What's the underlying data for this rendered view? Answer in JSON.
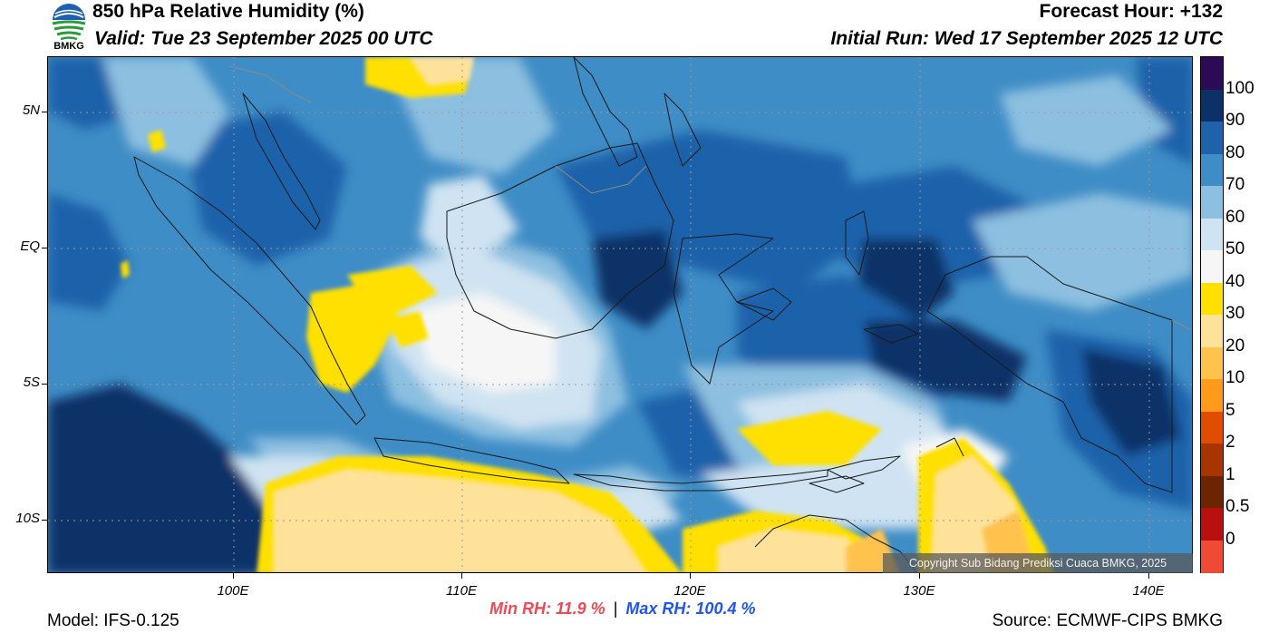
{
  "header": {
    "title": "850 hPa Relative Humidity (%)",
    "valid": "Valid: Tue 23 September 2025 00 UTC",
    "forecast_hour": "Forecast Hour: +132",
    "initial_run": "Initial Run: Wed 17 September 2025 12 UTC",
    "logo_text": "BMKG"
  },
  "axes": {
    "lat_labels": [
      "5N",
      "EQ",
      "5S",
      "10S"
    ],
    "lon_labels": [
      "100E",
      "110E",
      "120E",
      "130E",
      "140E"
    ]
  },
  "colorbar": {
    "labels": [
      "100",
      "90",
      "80",
      "70",
      "60",
      "50",
      "40",
      "30",
      "20",
      "10",
      "5",
      "2",
      "1",
      "0.5",
      "0"
    ],
    "colors": [
      "#2d0a55",
      "#0c3168",
      "#1f62aa",
      "#3f8dc6",
      "#8cbfe0",
      "#cfe3f2",
      "#f6f6f6",
      "#ffe000",
      "#ffe29a",
      "#ffc24d",
      "#ff9a1a",
      "#e04d00",
      "#a83400",
      "#6b2500",
      "#b81010",
      "#ee4a35"
    ]
  },
  "stats": {
    "min_label": "Min RH:  11.9 %",
    "separator": "|",
    "max_label": "Max RH: 100.4 %",
    "min_color": "#ee4a55",
    "max_color": "#2255ee"
  },
  "footer": {
    "model": "Model: IFS-0.125",
    "source": "Source: ECMWF-CIPS BMKG",
    "copyright": "Copyright Sub Bidang Prediksi Cuaca BMKG, 2025"
  }
}
